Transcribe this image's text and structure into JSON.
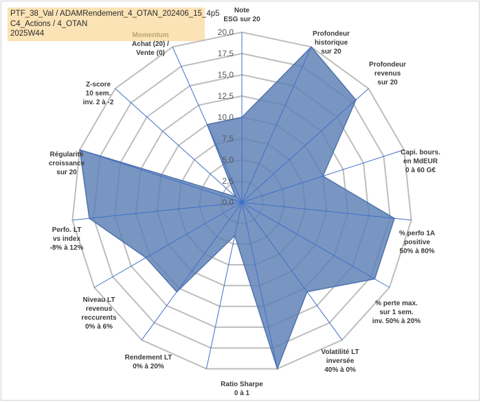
{
  "title_lines": [
    "PTF_38_Val / ADAMRendement_4_OTAN_202406_15_4p5",
    "C4_Actions / 4_OTAN",
    "2025W44"
  ],
  "chart_data": {
    "type": "radar",
    "rmin": 0,
    "rmax": 20,
    "ticks": [
      "0,0",
      "2,5",
      "5,0",
      "7,5",
      "10,0",
      "12,5",
      "15,0",
      "17,5",
      "20,0"
    ],
    "tick_values": [
      0,
      2.5,
      5,
      7.5,
      10,
      12.5,
      15,
      17.5,
      20
    ],
    "series": [
      {
        "color": "#5b7fb5",
        "values": [
          10,
          20,
          18,
          10,
          18,
          18,
          13,
          20,
          4,
          13,
          13,
          18,
          20,
          1,
          10
        ]
      }
    ],
    "axes": [
      {
        "lines": [
          "Note",
          "ESG sur 20"
        ],
        "color": "#3a3a3a"
      },
      {
        "lines": [
          "Profondeur",
          "historique",
          "sur 20"
        ],
        "color": "#3a3a3a"
      },
      {
        "lines": [
          "Profondeur",
          "revenus",
          "sur 20"
        ],
        "color": "#3a3a3a"
      },
      {
        "lines": [
          "Capi. bours.",
          "en MdEUR",
          "0 à 60 G€"
        ],
        "color": "#3a3a3a"
      },
      {
        "lines": [
          "% perfo 1A",
          "positive",
          "50% à 80%"
        ],
        "color": "#3a3a3a"
      },
      {
        "lines": [
          "% perte max.",
          "sur 1 sem.",
          "inv. 50% à 20%"
        ],
        "color": "#3a3a3a"
      },
      {
        "lines": [
          "Volatilité LT",
          "inversée",
          "40% à 0%"
        ],
        "color": "#3a3a3a"
      },
      {
        "lines": [
          "Ratio Sharpe",
          "0 à 1"
        ],
        "color": "#3a3a3a"
      },
      {
        "lines": [
          "Rendement LT",
          "0% à 20%"
        ],
        "color": "#3a3a3a"
      },
      {
        "lines": [
          "Niveau LT",
          "revenus",
          "reccurents",
          "0% à 6%"
        ],
        "color": "#3a3a3a"
      },
      {
        "lines": [
          "Perfo. LT",
          "vs index",
          "-8% à 12%"
        ],
        "color": "#3a3a3a"
      },
      {
        "lines": [
          "Régularité",
          "croissance",
          "sur 20"
        ],
        "color": "#3a3a3a"
      },
      {
        "lines": [
          "Z-score",
          "10 sem.",
          "inv. 2 à -2"
        ],
        "color": "#3a3a3a"
      },
      {
        "lines": [
          "Achat (20) /",
          "Vente (0)"
        ],
        "color": "#3a3a3a"
      },
      {
        "lines": [
          "Momentum"
        ],
        "color": "#b8a56e"
      }
    ]
  }
}
